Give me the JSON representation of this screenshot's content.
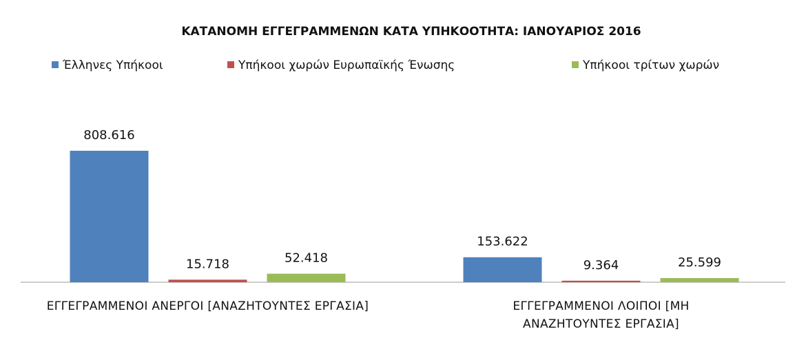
{
  "chart_data": {
    "type": "bar",
    "title": "ΚΑΤΑΝΟΜΗ ΕΓΓΕΓΡΑΜΜΕΝΩΝ ΚΑΤΑ ΥΠΗΚΟΟΤΗΤΑ: ΙΑΝΟΥΑΡΙΟΣ 2016",
    "categories": [
      "ΕΓΓΕΓΡΑΜΜΕΝΟΙ ΑΝΕΡΓΟΙ [ΑΝΑΖΗΤΟΥΝΤΕΣ ΕΡΓΑΣΙΑ]",
      "ΕΓΓΕΓΡΑΜΜΕΝΟΙ ΛΟΙΠΟΙ [ΜΗ ΑΝΑΖΗΤΟΥΝΤΕΣ ΕΡΓΑΣΙΑ]"
    ],
    "series": [
      {
        "name": "Έλληνες Υπήκοοι",
        "color": "#4f81bd",
        "values": [
          808616,
          153622
        ],
        "value_labels": [
          "808.616",
          "153.622"
        ]
      },
      {
        "name": "Υπήκοοι χωρών Ευρωπαϊκής Ένωσης",
        "color": "#c0504d",
        "values": [
          15718,
          9364
        ],
        "value_labels": [
          "15.718",
          "9.364"
        ]
      },
      {
        "name": "Υπήκοοι τρίτων χωρών",
        "color": "#9bbb59",
        "values": [
          52418,
          25599
        ],
        "value_labels": [
          "52.418",
          "25.599"
        ]
      }
    ],
    "legend": "top"
  }
}
